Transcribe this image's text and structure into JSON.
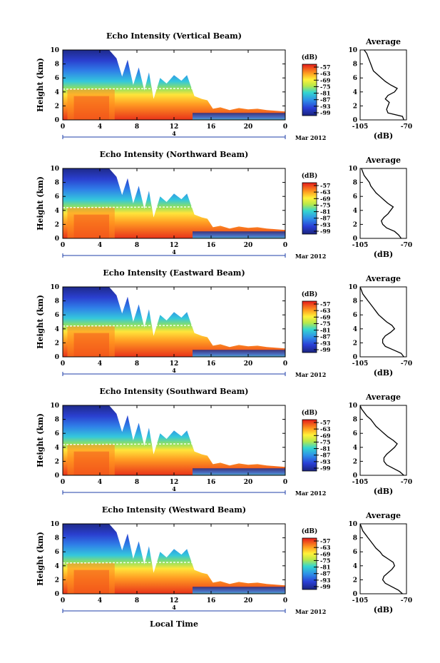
{
  "figure": {
    "xlabel": "Local Time",
    "date_label": "Mar 2012",
    "day_label": "4"
  },
  "chart_data": [
    {
      "type": "heatmap",
      "title": "Echo Intensity (Vertical Beam)",
      "ylabel": "Height (km)",
      "xticks": [
        "0",
        "4",
        "8",
        "12",
        "16",
        "20",
        "0"
      ],
      "yticks": [
        "0",
        "2",
        "4",
        "6",
        "8",
        "10"
      ],
      "xlim": [
        0,
        24
      ],
      "ylim": [
        0,
        10
      ],
      "colorbar": {
        "label": "(dB)",
        "ticks": [
          "-57",
          "-63",
          "-69",
          "-75",
          "-81",
          "-87",
          "-93",
          "-99"
        ]
      },
      "average": {
        "title": "Average",
        "xlabel": "(dB)",
        "xticks": [
          "-105",
          "-70"
        ],
        "yticks": [
          "0",
          "2",
          "4",
          "6",
          "8",
          "10"
        ],
        "height": [
          0,
          0.5,
          1,
          1.5,
          2,
          2.5,
          3,
          3.5,
          4,
          4.5,
          5,
          5.5,
          6,
          6.5,
          7,
          7.5,
          8,
          8.5,
          9,
          9.5,
          10
        ],
        "db": [
          -72,
          -73,
          -84,
          -85,
          -84,
          -83,
          -86,
          -84,
          -79,
          -77,
          -82,
          -86,
          -89,
          -92,
          -95,
          -96,
          -97,
          -98,
          -99,
          -100,
          -102
        ]
      }
    },
    {
      "type": "heatmap",
      "title": "Echo Intensity (Northward Beam)",
      "ylabel": "Height (km)",
      "xticks": [
        "0",
        "4",
        "8",
        "12",
        "16",
        "20",
        "0"
      ],
      "yticks": [
        "0",
        "2",
        "4",
        "6",
        "8",
        "10"
      ],
      "xlim": [
        0,
        24
      ],
      "ylim": [
        0,
        10
      ],
      "colorbar": {
        "label": "(dB)",
        "ticks": [
          "-57",
          "-63",
          "-69",
          "-75",
          "-81",
          "-87",
          "-93",
          "-99"
        ]
      },
      "average": {
        "title": "Average",
        "xlabel": "(dB)",
        "xticks": [
          "-105",
          "-70"
        ],
        "yticks": [
          "0",
          "2",
          "4",
          "6",
          "8",
          "10"
        ],
        "height": [
          0,
          0.5,
          1,
          1.5,
          2,
          2.5,
          3,
          3.5,
          4,
          4.5,
          5,
          5.5,
          6,
          6.5,
          7,
          7.5,
          8,
          8.5,
          9,
          9.5,
          10
        ],
        "db": [
          -74,
          -76,
          -79,
          -85,
          -88,
          -89,
          -87,
          -84,
          -82,
          -80,
          -84,
          -87,
          -90,
          -93,
          -95,
          -97,
          -98,
          -100,
          -102,
          -103,
          -104
        ]
      }
    },
    {
      "type": "heatmap",
      "title": "Echo Intensity (Eastward Beam)",
      "ylabel": "Height (km)",
      "xticks": [
        "0",
        "4",
        "8",
        "12",
        "16",
        "20",
        "0"
      ],
      "yticks": [
        "0",
        "2",
        "4",
        "6",
        "8",
        "10"
      ],
      "xlim": [
        0,
        24
      ],
      "ylim": [
        0,
        10
      ],
      "colorbar": {
        "label": "(dB)",
        "ticks": [
          "-57",
          "-63",
          "-69",
          "-75",
          "-81",
          "-87",
          "-93",
          "-99"
        ]
      },
      "average": {
        "title": "Average",
        "xlabel": "(dB)",
        "xticks": [
          "-105",
          "-70"
        ],
        "yticks": [
          "0",
          "2",
          "4",
          "6",
          "8",
          "10"
        ],
        "height": [
          0,
          0.5,
          1,
          1.5,
          2,
          2.5,
          3,
          3.5,
          4,
          4.5,
          5,
          5.5,
          6,
          6.5,
          7,
          7.5,
          8,
          8.5,
          9,
          9.5,
          10
        ],
        "db": [
          -72,
          -74,
          -80,
          -86,
          -88,
          -88,
          -86,
          -82,
          -79,
          -81,
          -85,
          -88,
          -91,
          -93,
          -95,
          -97,
          -99,
          -101,
          -103,
          -104,
          -105
        ]
      }
    },
    {
      "type": "heatmap",
      "title": "Echo Intensity (Southward Beam)",
      "ylabel": "Height (km)",
      "xticks": [
        "0",
        "4",
        "8",
        "12",
        "16",
        "20",
        "0"
      ],
      "yticks": [
        "0",
        "2",
        "4",
        "6",
        "8",
        "10"
      ],
      "xlim": [
        0,
        24
      ],
      "ylim": [
        0,
        10
      ],
      "colorbar": {
        "label": "(dB)",
        "ticks": [
          "-57",
          "-63",
          "-69",
          "-75",
          "-81",
          "-87",
          "-93",
          "-99"
        ]
      },
      "average": {
        "title": "Average",
        "xlabel": "(dB)",
        "xticks": [
          "-105",
          "-70"
        ],
        "yticks": [
          "0",
          "2",
          "4",
          "6",
          "8",
          "10"
        ],
        "height": [
          0,
          0.5,
          1,
          1.5,
          2,
          2.5,
          3,
          3.5,
          4,
          4.5,
          5,
          5.5,
          6,
          6.5,
          7,
          7.5,
          8,
          8.5,
          9,
          9.5,
          10
        ],
        "db": [
          -72,
          -75,
          -80,
          -85,
          -87,
          -87,
          -85,
          -82,
          -79,
          -77,
          -80,
          -84,
          -87,
          -90,
          -93,
          -95,
          -97,
          -100,
          -102,
          -104,
          -105
        ]
      }
    },
    {
      "type": "heatmap",
      "title": "Echo Intensity (Westward Beam)",
      "ylabel": "Height (km)",
      "xticks": [
        "0",
        "4",
        "8",
        "12",
        "16",
        "20",
        "0"
      ],
      "yticks": [
        "0",
        "2",
        "4",
        "6",
        "8",
        "10"
      ],
      "xlim": [
        0,
        24
      ],
      "ylim": [
        0,
        10
      ],
      "colorbar": {
        "label": "(dB)",
        "ticks": [
          "-57",
          "-63",
          "-69",
          "-75",
          "-81",
          "-87",
          "-93",
          "-99"
        ]
      },
      "average": {
        "title": "Average",
        "xlabel": "(dB)",
        "xticks": [
          "-105",
          "-70"
        ],
        "yticks": [
          "0",
          "2",
          "4",
          "6",
          "8",
          "10"
        ],
        "height": [
          0,
          0.5,
          1,
          1.5,
          2,
          2.5,
          3,
          3.5,
          4,
          4.5,
          5,
          5.5,
          6,
          6.5,
          7,
          7.5,
          8,
          8.5,
          9,
          9.5,
          10
        ],
        "db": [
          -73,
          -76,
          -81,
          -86,
          -88,
          -87,
          -84,
          -81,
          -79,
          -80,
          -84,
          -88,
          -90,
          -93,
          -95,
          -97,
          -99,
          -101,
          -103,
          -104,
          -105
        ]
      }
    }
  ]
}
